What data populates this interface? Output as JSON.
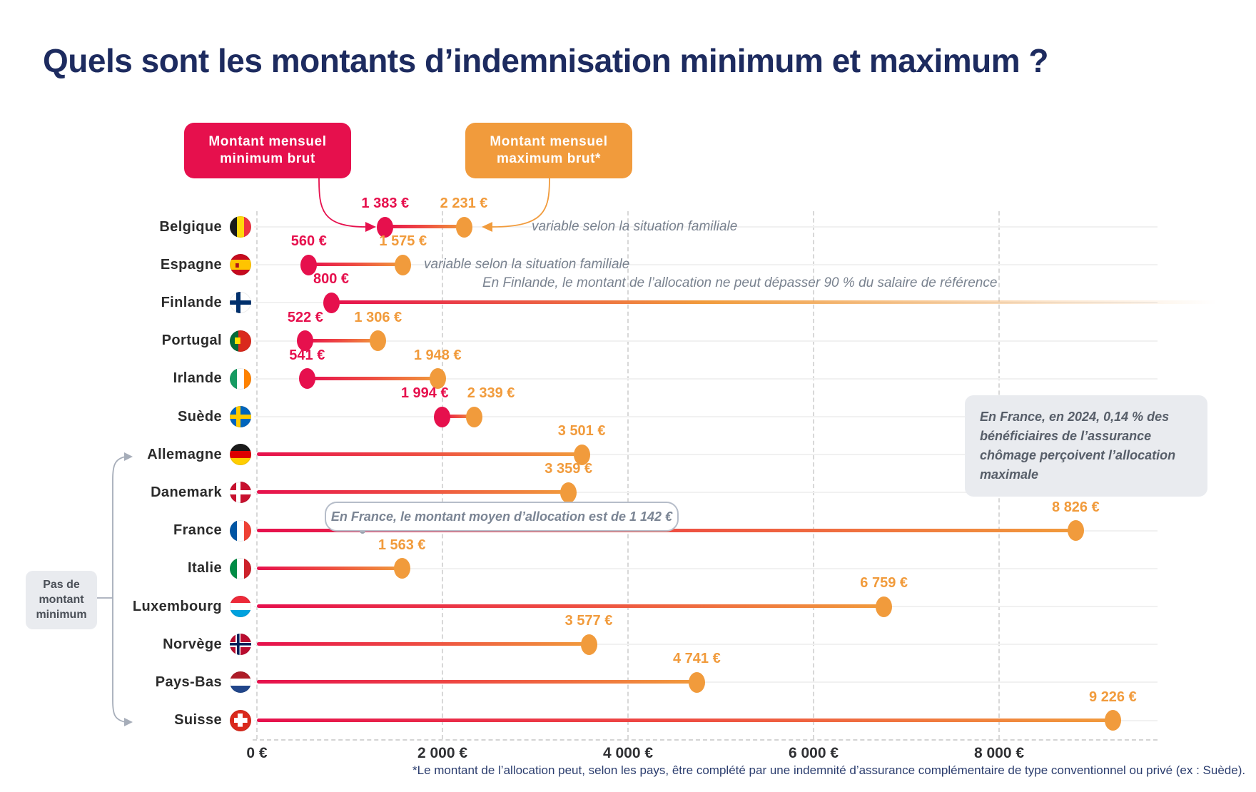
{
  "title": "Quels sont les montants d’indemnisation minimum et maximum ?",
  "colors": {
    "min": "#e6104d",
    "max": "#f19b3c",
    "title": "#1d2b5f"
  },
  "legend": {
    "min": {
      "line1": "Montant mensuel",
      "line2": "minimum brut",
      "color": "#e6104d"
    },
    "max": {
      "line1": "Montant mensuel",
      "line2": "maximum brut*",
      "color": "#f19b3c"
    }
  },
  "no_minimum_label": {
    "line1": "Pas de",
    "line2": "montant",
    "line3": "minimum"
  },
  "callouts": {
    "france_average": "En France, le montant moyen d’allocation est de 1 142 €",
    "france_average_value": 1142,
    "france_maximum_note": "En France, en 2024, 0,14 % des bénéficiaires de l’assurance chômage perçoivent l’allocation maximale"
  },
  "footnote": "*Le montant de l’allocation peut, selon les pays, être complété par une indemnité d’assurance complémentaire de type conventionnel ou privé (ex : Suède).",
  "chart_data": {
    "type": "dumbbell",
    "title": "Quels sont les montants d’indemnisation minimum et maximum ?",
    "x_unit": "€ brut par mois",
    "xlim": [
      0,
      9600
    ],
    "grid": "dashed-vertical",
    "x_ticks": [
      {
        "label": "0 €",
        "value": 0
      },
      {
        "label": "2 000 €",
        "value": 2000
      },
      {
        "label": "4 000 €",
        "value": 4000
      },
      {
        "label": "6 000 €",
        "value": 6000
      },
      {
        "label": "8 000 €",
        "value": 8000
      }
    ],
    "series": [
      {
        "country": "Belgique",
        "flag": "be",
        "min": 1383,
        "max": 2231,
        "min_label": "1 383 €",
        "max_label": "2 231 €",
        "annotation": "variable selon la situation familiale"
      },
      {
        "country": "Espagne",
        "flag": "es",
        "min": 560,
        "max": 1575,
        "min_label": "560 €",
        "max_label": "1 575 €",
        "annotation": "variable selon la situation familiale"
      },
      {
        "country": "Finlande",
        "flag": "fi",
        "min": 800,
        "max": null,
        "min_label": "800 €",
        "max_label": null,
        "open_ended": true,
        "annotation": "En Finlande, le montant de l’allocation ne peut dépasser 90 % du salaire de référence"
      },
      {
        "country": "Portugal",
        "flag": "pt",
        "min": 522,
        "max": 1306,
        "min_label": "522 €",
        "max_label": "1 306 €"
      },
      {
        "country": "Irlande",
        "flag": "ie",
        "min": 541,
        "max": 1948,
        "min_label": "541 €",
        "max_label": "1 948 €"
      },
      {
        "country": "Suède",
        "flag": "se",
        "min": 1994,
        "max": 2339,
        "min_label": "1 994 €",
        "max_label": "2 339 €"
      },
      {
        "country": "Allemagne",
        "flag": "de",
        "min": null,
        "max": 3501,
        "max_label": "3 501 €",
        "no_minimum": true
      },
      {
        "country": "Danemark",
        "flag": "dk",
        "min": null,
        "max": 3359,
        "max_label": "3 359 €",
        "no_minimum": true
      },
      {
        "country": "France",
        "flag": "fr",
        "min": null,
        "max": 8826,
        "max_label": "8 826 €",
        "no_minimum": true
      },
      {
        "country": "Italie",
        "flag": "it",
        "min": null,
        "max": 1563,
        "max_label": "1 563 €",
        "no_minimum": true
      },
      {
        "country": "Luxembourg",
        "flag": "lu",
        "min": null,
        "max": 6759,
        "max_label": "6 759 €",
        "no_minimum": true
      },
      {
        "country": "Norvège",
        "flag": "no",
        "min": null,
        "max": 3577,
        "max_label": "3 577 €",
        "no_minimum": true
      },
      {
        "country": "Pays-Bas",
        "flag": "nl",
        "min": null,
        "max": 4741,
        "max_label": "4 741 €",
        "no_minimum": true
      },
      {
        "country": "Suisse",
        "flag": "ch",
        "min": null,
        "max": 9226,
        "max_label": "9 226 €",
        "no_minimum": true
      }
    ]
  }
}
